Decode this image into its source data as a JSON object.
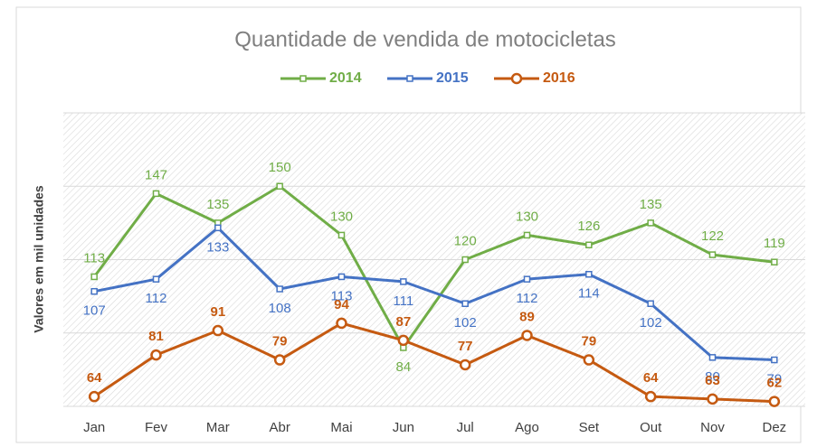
{
  "chart_data": {
    "type": "line",
    "title": "Quantidade de vendida de motocicletas",
    "y_label": "Valores em mil unidades",
    "categories": [
      "Jan",
      "Fev",
      "Mar",
      "Abr",
      "Mai",
      "Jun",
      "Jul",
      "Ago",
      "Set",
      "Out",
      "Nov",
      "Dez"
    ],
    "series": [
      {
        "name": "2014",
        "color": "#70ad47",
        "marker": "square",
        "values": [
          113,
          147,
          135,
          150,
          130,
          84,
          120,
          130,
          126,
          135,
          122,
          119
        ]
      },
      {
        "name": "2015",
        "color": "#4472c4",
        "marker": "square",
        "values": [
          107,
          112,
          133,
          108,
          113,
          111,
          102,
          112,
          114,
          102,
          80,
          79
        ]
      },
      {
        "name": "2016",
        "color": "#c55a11",
        "marker": "circle",
        "values": [
          64,
          81,
          91,
          79,
          94,
          87,
          77,
          89,
          79,
          64,
          63,
          62
        ]
      }
    ],
    "ylim": [
      60,
      180
    ],
    "yticks": [
      60,
      90,
      120,
      150,
      180
    ],
    "grid": true,
    "legend": "top"
  }
}
